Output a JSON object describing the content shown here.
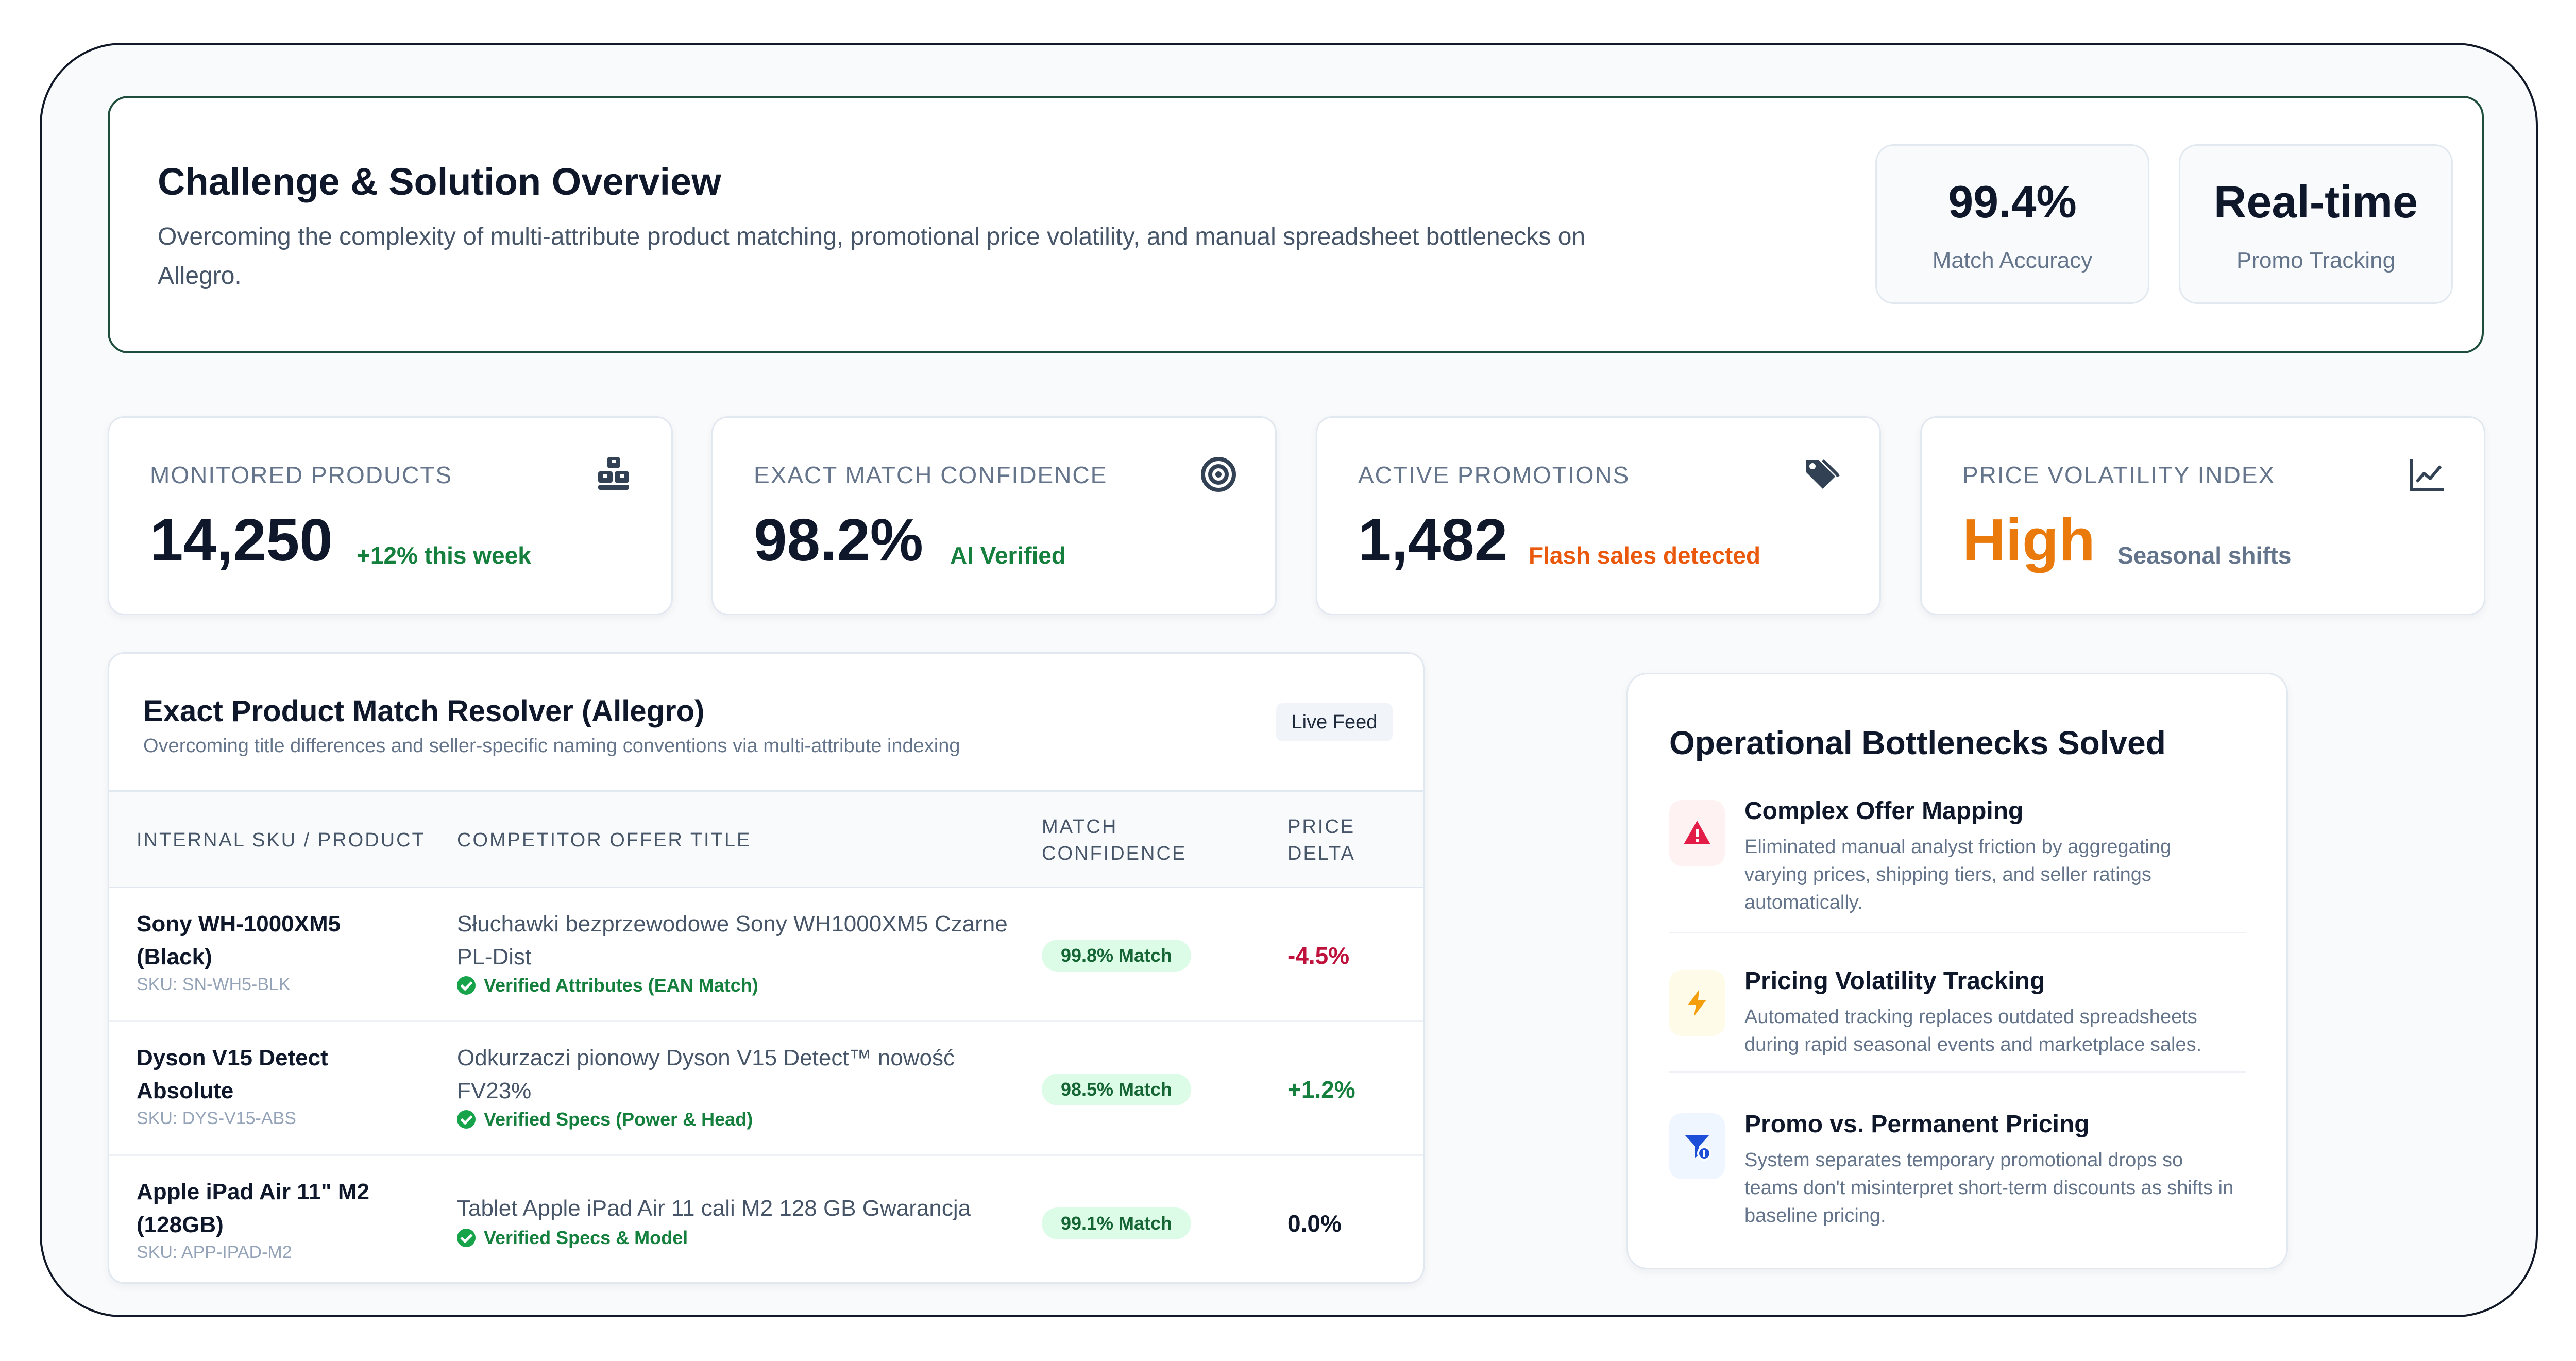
{
  "overview": {
    "title": "Challenge & Solution Overview",
    "description": "Overcoming the complexity of multi-attribute product matching, promotional price volatility, and manual spreadsheet bottlenecks on Allegro.",
    "stats": [
      {
        "value": "99.4%",
        "label": "Match Accuracy"
      },
      {
        "value": "Real-time",
        "label": "Promo Tracking"
      }
    ]
  },
  "kpis": [
    {
      "label": "MONITORED PRODUCTS",
      "value": "14,250",
      "note": "+12% this week",
      "note_color": "#15803d",
      "icon": "boxes-icon"
    },
    {
      "label": "EXACT MATCH CONFIDENCE",
      "value": "98.2%",
      "note": "AI Verified",
      "note_color": "#15803d",
      "icon": "target-icon"
    },
    {
      "label": "ACTIVE PROMOTIONS",
      "value": "1,482",
      "note": "Flash sales detected",
      "note_color": "#ea580c",
      "icon": "tags-icon"
    },
    {
      "label": "PRICE VOLATILITY INDEX",
      "value": "High",
      "note": "Seasonal shifts",
      "note_color": "#64748b",
      "value_color": "#ea7a0c",
      "icon": "line-chart-icon"
    }
  ],
  "resolver": {
    "title": "Exact Product Match Resolver (Allegro)",
    "subtitle": "Overcoming title differences and seller-specific naming conventions via multi-attribute indexing",
    "badge": "Live Feed",
    "columns": {
      "product": "INTERNAL SKU / PRODUCT",
      "offer": "COMPETITOR OFFER TITLE",
      "match_1": "MATCH",
      "match_2": "CONFIDENCE",
      "delta_1": "PRICE",
      "delta_2": "DELTA"
    },
    "rows": [
      {
        "product": "Sony WH-1000XM5 (Black)",
        "sku": "SKU: SN-WH5-BLK",
        "offer": "Słuchawki bezprzewodowe Sony WH1000XM5 Czarne PL-Dist",
        "verified": "Verified Attributes (EAN Match)",
        "match": "99.8% Match",
        "delta": "-4.5%",
        "delta_color": "#be123c"
      },
      {
        "product": "Dyson V15 Detect Absolute",
        "sku": "SKU: DYS-V15-ABS",
        "offer": "Odkurzaczi pionowy Dyson V15 Detect™ nowość FV23%",
        "verified": "Verified Specs (Power & Head)",
        "match": "98.5% Match",
        "delta": "+1.2%",
        "delta_color": "#15803d"
      },
      {
        "product": "Apple iPad Air 11\" M2 (128GB)",
        "sku": "SKU: APP-IPAD-M2",
        "offer": "Tablet Apple iPad Air 11 cali M2 128 GB Gwarancja",
        "verified": "Verified Specs & Model",
        "match": "99.1% Match",
        "delta": "0.0%",
        "delta_color": "#0f172a"
      }
    ]
  },
  "bottlenecks": {
    "title": "Operational Bottlenecks Solved",
    "items": [
      {
        "title": "Complex Offer Mapping",
        "desc": "Eliminated manual analyst friction by aggregating varying prices, shipping tiers, and seller ratings automatically.",
        "icon": "warning-icon",
        "bg": "#fef2f2",
        "color": "#e11d48"
      },
      {
        "title": "Pricing Volatility Tracking",
        "desc": "Automated tracking replaces outdated spreadsheets during rapid seasonal events and marketplace sales.",
        "icon": "lightning-icon",
        "bg": "#fefce8",
        "color": "#f59e0b"
      },
      {
        "title": "Promo vs. Permanent Pricing",
        "desc": "System separates temporary promotional drops so teams don't misinterpret short-term discounts as shifts in baseline pricing.",
        "icon": "filter-dollar-icon",
        "bg": "#eff6ff",
        "color": "#1d4ed8"
      }
    ]
  }
}
